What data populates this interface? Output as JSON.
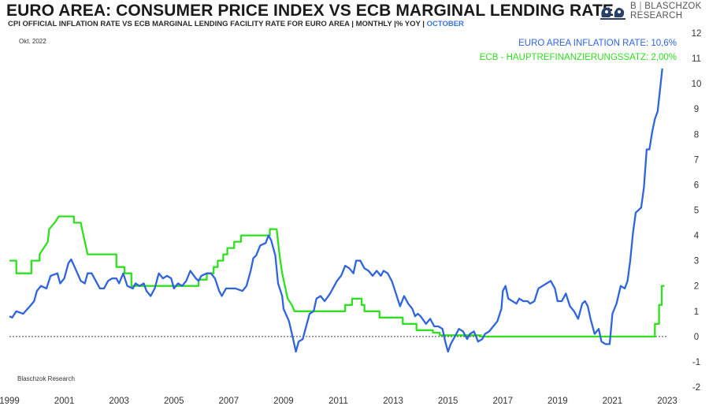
{
  "header": {
    "title": "EURO AREA: CONSUMER PRICE INDEX VS ECB MARGINAL LENDING RATE",
    "subtitle": "CPI OFFICIAL INFLATION RATE VS ECB MARGINAL LENDING FACILITY RATE FOR EURO AREA | MONTHLY |% YOY |",
    "subtitle_accent": "OCTOBER"
  },
  "logo": {
    "line1": "BLASCHZOK",
    "line2": "RESEARCH",
    "initial": "B"
  },
  "colors": {
    "inflation": "#2f64de",
    "ecb": "#2fe01e",
    "zero_line": "#444444",
    "text": "#333333"
  },
  "chart_data": {
    "type": "line",
    "date_note": "Okt. 2022",
    "source": "Blaschzok Research",
    "x_tick_labels": [
      "1999",
      "2001",
      "2003",
      "2005",
      "2007",
      "2009",
      "2011",
      "2013",
      "2015",
      "2017",
      "2019",
      "2021",
      "2023"
    ],
    "x_range": [
      1999.0,
      2023.0
    ],
    "ylim": [
      -2,
      12
    ],
    "y_tick_labels": [
      "12",
      "11",
      "10",
      "9",
      "8",
      "7",
      "6",
      "5",
      "4",
      "3",
      "2",
      "1",
      "0",
      "-1",
      "-2"
    ],
    "reference_line": 0,
    "legend_position": "top-right",
    "series": [
      {
        "name": "EURO AREA INFLATION RATE: 10,6%",
        "color": "#2f64de",
        "points": [
          [
            1999.0,
            0.8
          ],
          [
            1999.1,
            0.75
          ],
          [
            1999.25,
            1.0
          ],
          [
            1999.5,
            0.9
          ],
          [
            1999.75,
            1.2
          ],
          [
            1999.9,
            1.4
          ],
          [
            2000.0,
            1.8
          ],
          [
            2000.15,
            2.0
          ],
          [
            2000.35,
            1.9
          ],
          [
            2000.5,
            2.4
          ],
          [
            2000.75,
            2.5
          ],
          [
            2000.85,
            2.1
          ],
          [
            2001.0,
            2.3
          ],
          [
            2001.15,
            2.9
          ],
          [
            2001.25,
            3.05
          ],
          [
            2001.4,
            2.7
          ],
          [
            2001.6,
            2.2
          ],
          [
            2001.75,
            2.1
          ],
          [
            2001.85,
            2.5
          ],
          [
            2002.0,
            2.5
          ],
          [
            2002.15,
            2.2
          ],
          [
            2002.3,
            1.9
          ],
          [
            2002.45,
            1.9
          ],
          [
            2002.6,
            2.2
          ],
          [
            2002.75,
            2.3
          ],
          [
            2002.9,
            2.3
          ],
          [
            2003.0,
            2.1
          ],
          [
            2003.15,
            2.5
          ],
          [
            2003.3,
            2.0
          ],
          [
            2003.5,
            1.9
          ],
          [
            2003.6,
            2.1
          ],
          [
            2003.75,
            2.0
          ],
          [
            2003.9,
            2.1
          ],
          [
            2004.0,
            1.8
          ],
          [
            2004.15,
            1.6
          ],
          [
            2004.3,
            1.9
          ],
          [
            2004.45,
            2.5
          ],
          [
            2004.6,
            2.3
          ],
          [
            2004.75,
            2.4
          ],
          [
            2004.9,
            2.3
          ],
          [
            2005.0,
            1.9
          ],
          [
            2005.15,
            2.1
          ],
          [
            2005.3,
            2.0
          ],
          [
            2005.45,
            2.2
          ],
          [
            2005.6,
            2.6
          ],
          [
            2005.8,
            2.3
          ],
          [
            2005.9,
            2.2
          ],
          [
            2006.0,
            2.4
          ],
          [
            2006.2,
            2.5
          ],
          [
            2006.35,
            2.5
          ],
          [
            2006.5,
            2.3
          ],
          [
            2006.65,
            1.8
          ],
          [
            2006.75,
            1.6
          ],
          [
            2006.9,
            1.9
          ],
          [
            2007.0,
            1.9
          ],
          [
            2007.25,
            1.9
          ],
          [
            2007.5,
            1.8
          ],
          [
            2007.65,
            2.0
          ],
          [
            2007.8,
            2.6
          ],
          [
            2007.9,
            3.1
          ],
          [
            2008.0,
            3.2
          ],
          [
            2008.15,
            3.6
          ],
          [
            2008.35,
            3.7
          ],
          [
            2008.45,
            4.0
          ],
          [
            2008.55,
            3.8
          ],
          [
            2008.7,
            3.2
          ],
          [
            2008.8,
            2.1
          ],
          [
            2008.95,
            1.6
          ],
          [
            2009.0,
            1.1
          ],
          [
            2009.2,
            0.6
          ],
          [
            2009.35,
            -0.1
          ],
          [
            2009.45,
            -0.6
          ],
          [
            2009.55,
            -0.2
          ],
          [
            2009.7,
            -0.1
          ],
          [
            2009.85,
            0.5
          ],
          [
            2009.95,
            0.9
          ],
          [
            2010.1,
            1.0
          ],
          [
            2010.2,
            1.5
          ],
          [
            2010.35,
            1.6
          ],
          [
            2010.5,
            1.4
          ],
          [
            2010.7,
            1.7
          ],
          [
            2010.8,
            1.9
          ],
          [
            2010.95,
            2.2
          ],
          [
            2011.1,
            2.4
          ],
          [
            2011.25,
            2.8
          ],
          [
            2011.4,
            2.7
          ],
          [
            2011.55,
            2.5
          ],
          [
            2011.65,
            3.0
          ],
          [
            2011.8,
            3.0
          ],
          [
            2011.95,
            2.7
          ],
          [
            2012.1,
            2.6
          ],
          [
            2012.25,
            2.4
          ],
          [
            2012.4,
            2.6
          ],
          [
            2012.55,
            2.4
          ],
          [
            2012.65,
            2.6
          ],
          [
            2012.8,
            2.5
          ],
          [
            2012.95,
            2.2
          ],
          [
            2013.1,
            1.7
          ],
          [
            2013.25,
            1.2
          ],
          [
            2013.4,
            1.6
          ],
          [
            2013.55,
            1.3
          ],
          [
            2013.7,
            1.1
          ],
          [
            2013.8,
            0.8
          ],
          [
            2013.9,
            0.9
          ],
          [
            2014.0,
            0.8
          ],
          [
            2014.2,
            0.5
          ],
          [
            2014.35,
            0.7
          ],
          [
            2014.5,
            0.4
          ],
          [
            2014.65,
            0.4
          ],
          [
            2014.8,
            0.3
          ],
          [
            2014.9,
            -0.2
          ],
          [
            2015.0,
            -0.6
          ],
          [
            2015.1,
            -0.3
          ],
          [
            2015.25,
            0.0
          ],
          [
            2015.4,
            0.3
          ],
          [
            2015.55,
            0.2
          ],
          [
            2015.7,
            -0.1
          ],
          [
            2015.8,
            0.1
          ],
          [
            2015.95,
            0.2
          ],
          [
            2016.1,
            -0.2
          ],
          [
            2016.25,
            -0.1
          ],
          [
            2016.35,
            0.1
          ],
          [
            2016.5,
            0.2
          ],
          [
            2016.65,
            0.4
          ],
          [
            2016.8,
            0.6
          ],
          [
            2016.95,
            1.1
          ],
          [
            2017.0,
            1.8
          ],
          [
            2017.1,
            2.0
          ],
          [
            2017.2,
            1.5
          ],
          [
            2017.35,
            1.4
          ],
          [
            2017.5,
            1.3
          ],
          [
            2017.6,
            1.5
          ],
          [
            2017.75,
            1.4
          ],
          [
            2017.9,
            1.4
          ],
          [
            2018.0,
            1.3
          ],
          [
            2018.15,
            1.4
          ],
          [
            2018.3,
            1.9
          ],
          [
            2018.45,
            2.0
          ],
          [
            2018.6,
            2.1
          ],
          [
            2018.75,
            2.2
          ],
          [
            2018.9,
            1.9
          ],
          [
            2019.0,
            1.4
          ],
          [
            2019.15,
            1.4
          ],
          [
            2019.3,
            1.7
          ],
          [
            2019.45,
            1.2
          ],
          [
            2019.6,
            1.0
          ],
          [
            2019.75,
            0.7
          ],
          [
            2019.9,
            1.3
          ],
          [
            2020.0,
            1.4
          ],
          [
            2020.1,
            1.2
          ],
          [
            2020.2,
            0.7
          ],
          [
            2020.35,
            0.1
          ],
          [
            2020.5,
            0.3
          ],
          [
            2020.6,
            -0.2
          ],
          [
            2020.75,
            -0.3
          ],
          [
            2020.9,
            -0.3
          ],
          [
            2021.0,
            0.9
          ],
          [
            2021.15,
            1.3
          ],
          [
            2021.3,
            2.0
          ],
          [
            2021.45,
            1.9
          ],
          [
            2021.55,
            2.2
          ],
          [
            2021.65,
            3.0
          ],
          [
            2021.75,
            4.1
          ],
          [
            2021.85,
            4.9
          ],
          [
            2021.95,
            5.0
          ],
          [
            2022.05,
            5.1
          ],
          [
            2022.15,
            5.9
          ],
          [
            2022.25,
            7.4
          ],
          [
            2022.35,
            7.4
          ],
          [
            2022.45,
            8.1
          ],
          [
            2022.55,
            8.6
          ],
          [
            2022.65,
            8.9
          ],
          [
            2022.75,
            9.9
          ],
          [
            2022.82,
            10.6
          ]
        ]
      },
      {
        "name": "ECB - HAUPTREFINANZIERUNGSSATZ: 2,00%",
        "color": "#2fe01e",
        "points": [
          [
            1999.0,
            3.0
          ],
          [
            1999.25,
            3.0
          ],
          [
            1999.25,
            2.5
          ],
          [
            1999.8,
            2.5
          ],
          [
            1999.8,
            3.0
          ],
          [
            2000.1,
            3.0
          ],
          [
            2000.1,
            3.25
          ],
          [
            2000.25,
            3.5
          ],
          [
            2000.4,
            3.75
          ],
          [
            2000.45,
            4.25
          ],
          [
            2000.65,
            4.5
          ],
          [
            2000.8,
            4.75
          ],
          [
            2001.35,
            4.75
          ],
          [
            2001.35,
            4.5
          ],
          [
            2001.6,
            4.5
          ],
          [
            2001.65,
            4.25
          ],
          [
            2001.75,
            3.75
          ],
          [
            2001.85,
            3.25
          ],
          [
            2002.9,
            3.25
          ],
          [
            2002.9,
            2.75
          ],
          [
            2003.2,
            2.75
          ],
          [
            2003.2,
            2.5
          ],
          [
            2003.45,
            2.5
          ],
          [
            2003.45,
            2.0
          ],
          [
            2005.9,
            2.0
          ],
          [
            2005.9,
            2.25
          ],
          [
            2006.2,
            2.25
          ],
          [
            2006.2,
            2.5
          ],
          [
            2006.45,
            2.5
          ],
          [
            2006.45,
            2.75
          ],
          [
            2006.6,
            2.75
          ],
          [
            2006.6,
            3.0
          ],
          [
            2006.8,
            3.0
          ],
          [
            2006.8,
            3.25
          ],
          [
            2006.95,
            3.25
          ],
          [
            2006.95,
            3.5
          ],
          [
            2007.2,
            3.5
          ],
          [
            2007.2,
            3.75
          ],
          [
            2007.45,
            3.75
          ],
          [
            2007.45,
            4.0
          ],
          [
            2008.5,
            4.0
          ],
          [
            2008.5,
            4.25
          ],
          [
            2008.75,
            4.25
          ],
          [
            2008.8,
            3.75
          ],
          [
            2008.85,
            3.25
          ],
          [
            2008.95,
            2.5
          ],
          [
            2009.05,
            2.0
          ],
          [
            2009.15,
            1.5
          ],
          [
            2009.3,
            1.25
          ],
          [
            2009.4,
            1.0
          ],
          [
            2011.25,
            1.0
          ],
          [
            2011.25,
            1.25
          ],
          [
            2011.5,
            1.25
          ],
          [
            2011.5,
            1.5
          ],
          [
            2011.85,
            1.5
          ],
          [
            2011.85,
            1.25
          ],
          [
            2011.95,
            1.25
          ],
          [
            2011.95,
            1.0
          ],
          [
            2012.5,
            1.0
          ],
          [
            2012.5,
            0.75
          ],
          [
            2013.35,
            0.75
          ],
          [
            2013.35,
            0.5
          ],
          [
            2013.85,
            0.5
          ],
          [
            2013.85,
            0.25
          ],
          [
            2014.45,
            0.25
          ],
          [
            2014.45,
            0.15
          ],
          [
            2014.7,
            0.15
          ],
          [
            2014.7,
            0.05
          ],
          [
            2016.2,
            0.05
          ],
          [
            2016.2,
            0.0
          ],
          [
            2022.55,
            0.0
          ],
          [
            2022.55,
            0.5
          ],
          [
            2022.7,
            0.5
          ],
          [
            2022.7,
            1.25
          ],
          [
            2022.8,
            1.25
          ],
          [
            2022.8,
            2.0
          ],
          [
            2022.9,
            2.0
          ]
        ]
      }
    ]
  }
}
